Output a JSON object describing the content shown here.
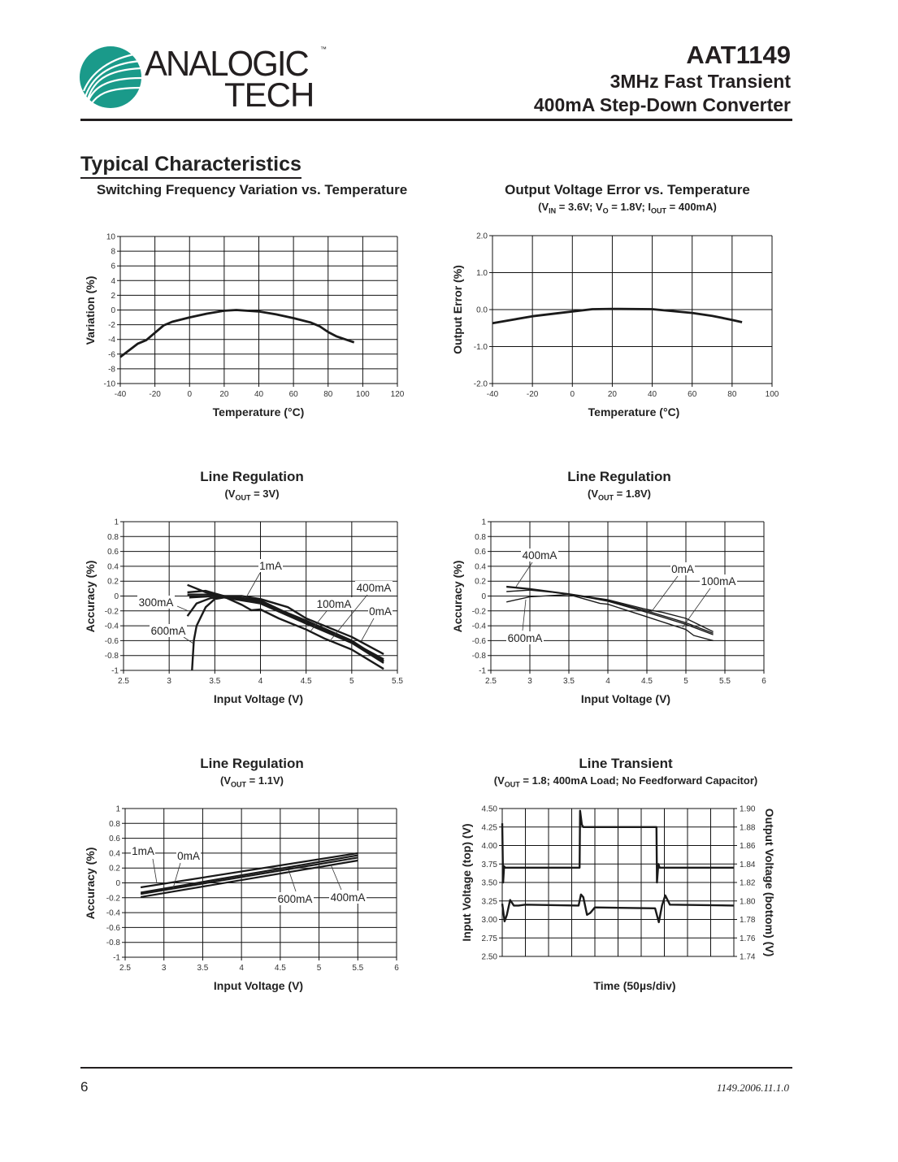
{
  "header": {
    "logo_text_top": "ANALOGIC",
    "logo_text_bottom": "TECH",
    "logo_tm": "™",
    "logo_color": "#1a9a8a",
    "part_number": "AAT1149",
    "subtitle_1": "3MHz Fast Transient",
    "subtitle_2": "400mA Step-Down Converter"
  },
  "section_title": "Typical Characteristics",
  "footer": {
    "page_number": "6",
    "doc_code": "1149.2006.11.1.0"
  },
  "chart_data": [
    {
      "type": "line",
      "title": "Switching Frequency Variation vs. Temperature",
      "subtitle_parts": [],
      "xlabel": "Temperature (°C)",
      "ylabel": "Variation (%)",
      "xlim": [
        -40,
        120
      ],
      "ylim": [
        -10,
        10
      ],
      "xticks": [
        "-40",
        "-20",
        "0",
        "20",
        "40",
        "60",
        "80",
        "100",
        "120"
      ],
      "yticks": [
        "10",
        "8",
        "6",
        "4",
        "2",
        "0",
        "-2",
        "-4",
        "-6",
        "-8",
        "-10"
      ],
      "grid": true,
      "series": [
        {
          "x": [
            -40,
            -30,
            -25,
            -20,
            -15,
            -10,
            0,
            10,
            20,
            27,
            40,
            50,
            60,
            70,
            75,
            80,
            85,
            95
          ],
          "y": [
            -6.4,
            -4.6,
            -4.1,
            -3.1,
            -2.1,
            -1.6,
            -1.0,
            -0.5,
            -0.1,
            0,
            -0.2,
            -0.6,
            -1.1,
            -1.7,
            -2.2,
            -3.0,
            -3.6,
            -4.4
          ]
        }
      ],
      "annotations": []
    },
    {
      "type": "line",
      "title": "Output Voltage Error vs. Temperature",
      "subtitle_parts": [
        "(V",
        "IN",
        " = 3.6V; V",
        "O",
        " = 1.8V; I",
        "OUT",
        " = 400mA)"
      ],
      "xlabel": "Temperature (°C)",
      "ylabel": "Output Error (%)",
      "xlim": [
        -40,
        100
      ],
      "ylim": [
        -2,
        2
      ],
      "xticks": [
        "-40",
        "-20",
        "0",
        "20",
        "40",
        "60",
        "80",
        "100"
      ],
      "yticks": [
        "2.0",
        "1.0",
        "0.0",
        "-1.0",
        "-2.0"
      ],
      "grid": true,
      "series": [
        {
          "x": [
            -40,
            -20,
            0,
            10,
            20,
            40,
            60,
            70,
            80,
            85
          ],
          "y": [
            -0.37,
            -0.18,
            -0.05,
            0.01,
            0.02,
            0.01,
            -0.09,
            -0.17,
            -0.28,
            -0.34
          ]
        }
      ],
      "annotations": []
    },
    {
      "type": "line",
      "title": "Line Regulation",
      "subtitle_parts": [
        "(V",
        "OUT",
        " = 3V)"
      ],
      "xlabel": "Input Voltage (V)",
      "ylabel": "Accuracy (%)",
      "xlim": [
        2.5,
        5.5
      ],
      "ylim": [
        -1,
        1
      ],
      "xticks": [
        "2.5",
        "3",
        "3.5",
        "4",
        "4.5",
        "5",
        "5.5"
      ],
      "yticks": [
        "1",
        "0.8",
        "0.6",
        "0.4",
        "0.2",
        "0",
        "-0.2",
        "-0.4",
        "-0.6",
        "-0.8",
        "-1"
      ],
      "grid": true,
      "series": [
        {
          "name": "0mA",
          "x": [
            3.2,
            3.4,
            3.6,
            3.8,
            4.0,
            4.5,
            5.0,
            5.35
          ],
          "y": [
            0.15,
            0.05,
            0,
            -0.05,
            -0.1,
            -0.35,
            -0.62,
            -0.85
          ]
        },
        {
          "name": "1mA",
          "x": [
            3.2,
            3.4,
            3.6,
            3.8,
            4.0,
            4.3,
            4.5,
            5.0,
            5.35
          ],
          "y": [
            0.05,
            0.07,
            0.0,
            0.0,
            -0.04,
            -0.15,
            -0.3,
            -0.55,
            -0.78
          ]
        },
        {
          "name": "100mA",
          "x": [
            3.2,
            3.5,
            4.0,
            4.5,
            5.0,
            5.35
          ],
          "y": [
            0.02,
            0.02,
            -0.08,
            -0.33,
            -0.6,
            -0.88
          ]
        },
        {
          "name": "400mA",
          "x": [
            3.22,
            3.5,
            4.0,
            4.5,
            5.0,
            5.35
          ],
          "y": [
            -0.02,
            0.0,
            -0.1,
            -0.37,
            -0.63,
            -0.9
          ]
        },
        {
          "name": "300mA",
          "x": [
            3.2,
            3.3,
            3.45,
            3.6,
            3.8,
            3.9,
            4.0,
            4.2,
            4.5,
            4.7,
            5.0,
            5.35
          ],
          "y": [
            -0.27,
            -0.1,
            -0.03,
            -0.01,
            -0.12,
            -0.19,
            -0.18,
            -0.3,
            -0.45,
            -0.57,
            -0.72,
            -0.98
          ]
        },
        {
          "name": "600mA",
          "x": [
            3.25,
            3.27,
            3.3,
            3.4,
            3.5,
            3.6,
            3.7,
            4.0,
            4.5,
            5.0,
            5.35
          ],
          "y": [
            -1,
            -0.6,
            -0.4,
            -0.15,
            -0.04,
            -0.02,
            -0.01,
            -0.06,
            -0.35,
            -0.62,
            -0.87
          ]
        }
      ],
      "annotations": [
        "1mA",
        "400mA",
        "100mA",
        "0mA",
        "300mA",
        "600mA"
      ]
    },
    {
      "type": "line",
      "title": "Line Regulation",
      "subtitle_parts": [
        "(V",
        "OUT",
        " = 1.8V)"
      ],
      "xlabel": "Input Voltage (V)",
      "ylabel": "Accuracy (%)",
      "xlim": [
        2.5,
        6
      ],
      "ylim": [
        -1,
        1
      ],
      "xticks": [
        "2.5",
        "3",
        "3.5",
        "4",
        "4.5",
        "5",
        "5.5",
        "6"
      ],
      "yticks": [
        "1",
        "0.8",
        "0.6",
        "0.4",
        "0.2",
        "0",
        "-0.2",
        "-0.4",
        "-0.6",
        "-0.8",
        "-1"
      ],
      "grid": true,
      "series": [
        {
          "name": "400mA",
          "x": [
            2.7,
            3.0,
            3.5,
            4.0,
            4.5,
            4.7,
            5.0,
            5.35
          ],
          "y": [
            0.13,
            0.1,
            0.03,
            -0.05,
            -0.18,
            -0.22,
            -0.3,
            -0.48
          ]
        },
        {
          "name": "0mA",
          "x": [
            2.7,
            3.1,
            3.5,
            4.0,
            4.5,
            5.0,
            5.35
          ],
          "y": [
            0.12,
            0.08,
            0.02,
            -0.06,
            -0.2,
            -0.36,
            -0.5
          ]
        },
        {
          "name": "100mA",
          "x": [
            2.7,
            3.0,
            3.5,
            4.0,
            4.5,
            5.0,
            5.35
          ],
          "y": [
            0.06,
            0.08,
            0.03,
            -0.07,
            -0.22,
            -0.38,
            -0.52
          ]
        },
        {
          "name": "600mA",
          "x": [
            2.7,
            3.0,
            3.5,
            3.9,
            4.0,
            4.5,
            5.0,
            5.1,
            5.35
          ],
          "y": [
            -0.08,
            -0.01,
            0.02,
            -0.1,
            -0.11,
            -0.28,
            -0.45,
            -0.53,
            -0.6
          ]
        }
      ],
      "annotations": [
        "400mA",
        "0mA",
        "100mA",
        "600mA"
      ]
    },
    {
      "type": "line",
      "title": "Line Regulation",
      "subtitle_parts": [
        "(V",
        "OUT",
        " = 1.1V)"
      ],
      "xlabel": "Input Voltage (V)",
      "ylabel": "Accuracy (%)",
      "xlim": [
        2.5,
        6
      ],
      "ylim": [
        -1,
        1
      ],
      "xticks": [
        "2.5",
        "3",
        "3.5",
        "4",
        "4.5",
        "5",
        "5.5",
        "6"
      ],
      "yticks": [
        "1",
        "0.8",
        "0.6",
        "0.4",
        "0.2",
        "0",
        "-0.2",
        "-0.4",
        "-0.6",
        "-0.8",
        "-1"
      ],
      "grid": true,
      "series": [
        {
          "name": "1mA",
          "x": [
            2.7,
            5.5
          ],
          "y": [
            -0.06,
            0.4
          ]
        },
        {
          "name": "0mA",
          "x": [
            2.7,
            5.5
          ],
          "y": [
            -0.13,
            0.37
          ]
        },
        {
          "name": "600mA",
          "x": [
            2.7,
            5.5
          ],
          "y": [
            -0.15,
            0.34
          ]
        },
        {
          "name": "400mA",
          "x": [
            2.7,
            5.5
          ],
          "y": [
            -0.19,
            0.3
          ]
        }
      ],
      "annotations": [
        "1mA",
        "0mA",
        "600mA",
        "400mA"
      ]
    },
    {
      "type": "line",
      "title": "Line Transient",
      "subtitle_parts": [
        "(V",
        "OUT",
        " = 1.8; 400mA Load; No Feedforward Capacitor)"
      ],
      "xlabel": "Time (50µs/div)",
      "ylabel": "Input Voltage (top) (V)",
      "ylabel_right": "Output Voltage (bottom) (V)",
      "xlim": [
        0,
        500
      ],
      "ylim": [
        2.5,
        4.5
      ],
      "ylim_right": [
        1.74,
        1.9
      ],
      "xticks": [],
      "yticks": [
        "4.50",
        "4.25",
        "4.00",
        "3.75",
        "3.50",
        "3.25",
        "3.00",
        "2.75",
        "2.50"
      ],
      "yticks_right": [
        "1.90",
        "1.88",
        "1.86",
        "1.84",
        "1.82",
        "1.80",
        "1.78",
        "1.76",
        "1.74"
      ],
      "x_divisions": 10,
      "grid": true,
      "series": [
        {
          "axis": "left",
          "x": [
            0,
            2,
            4,
            6,
            167,
            168,
            172,
            175,
            333,
            334,
            337,
            340,
            500
          ],
          "y": [
            4.3,
            3.5,
            3.72,
            3.7,
            3.7,
            4.47,
            4.28,
            4.25,
            4.25,
            3.5,
            3.75,
            3.7,
            3.7
          ]
        },
        {
          "axis": "right",
          "x": [
            0,
            5,
            10,
            17,
            25,
            35,
            50,
            165,
            170,
            175,
            183,
            190,
            200,
            330,
            338,
            345,
            352,
            362,
            500
          ],
          "y": [
            1.797,
            1.778,
            1.785,
            1.801,
            1.795,
            1.795,
            1.796,
            1.795,
            1.807,
            1.804,
            1.785,
            1.787,
            1.793,
            1.792,
            1.777,
            1.795,
            1.806,
            1.796,
            1.795
          ]
        }
      ],
      "annotations": []
    }
  ]
}
